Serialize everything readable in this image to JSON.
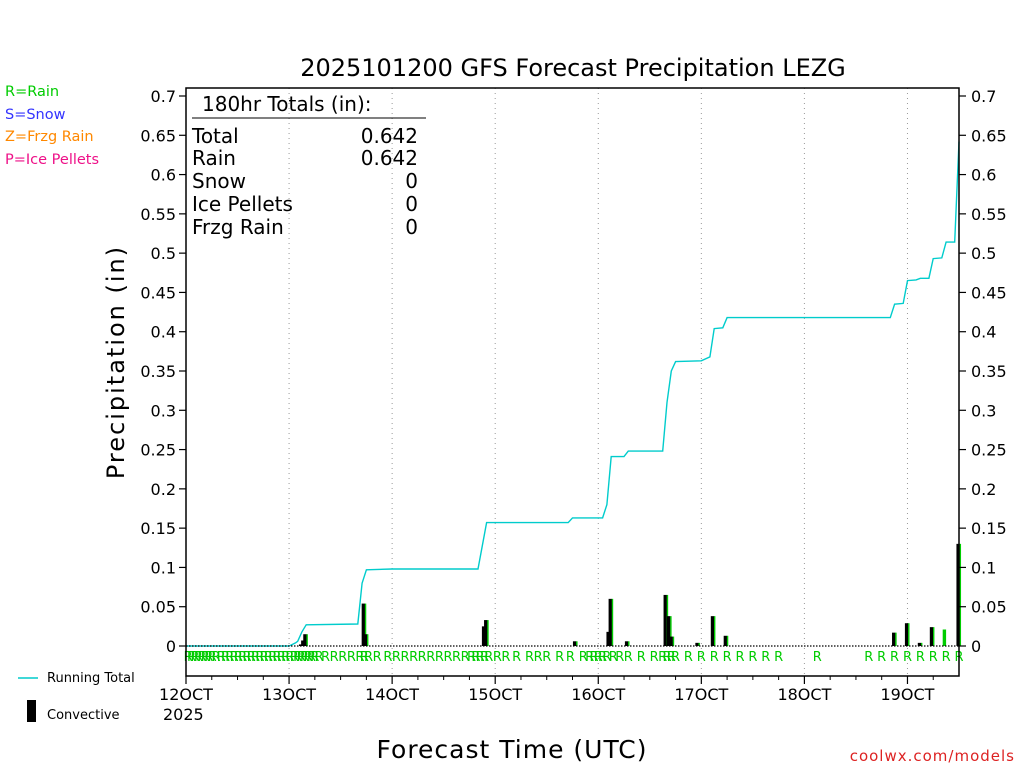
{
  "chart_data": {
    "type": "bar",
    "title": "2025101200 GFS Forecast Precipitation LEZG",
    "xlabel": "Forecast Time (UTC)",
    "ylabel": "Precipitation (in)",
    "xlim": [
      0,
      180
    ],
    "ylim": [
      0,
      0.7
    ],
    "y_ticks": [
      "0",
      "0.05",
      "0.1",
      "0.15",
      "0.2",
      "0.25",
      "0.3",
      "0.35",
      "0.4",
      "0.45",
      "0.5",
      "0.55",
      "0.6",
      "0.65",
      "0.7"
    ],
    "x_ticks": [
      {
        "hour": 0,
        "label": "12OCT"
      },
      {
        "hour": 24,
        "label": "13OCT"
      },
      {
        "hour": 48,
        "label": "14OCT"
      },
      {
        "hour": 72,
        "label": "15OCT"
      },
      {
        "hour": 96,
        "label": "16OCT"
      },
      {
        "hour": 120,
        "label": "17OCT"
      },
      {
        "hour": 144,
        "label": "18OCT"
      },
      {
        "hour": 168,
        "label": "19OCT"
      }
    ],
    "year_label": "2025",
    "gridlines": "vertical dotted at day boundaries",
    "legend_left": [
      {
        "text": "R=Rain",
        "color": "#00cc00"
      },
      {
        "text": "S=Snow",
        "color": "#3333ff"
      },
      {
        "text": "Z=Frzg Rain",
        "color": "#ff8800"
      },
      {
        "text": "P=Ice Pellets",
        "color": "#ee1188"
      }
    ],
    "legend_bottom": [
      {
        "text": "Running Total",
        "color": "#00cccc"
      },
      {
        "text": "Convective",
        "color": "#000000"
      }
    ],
    "totals": {
      "header": "180hr Totals (in):",
      "rows": [
        {
          "label": "Total",
          "value": "0.642"
        },
        {
          "label": "Rain",
          "value": "0.642"
        },
        {
          "label": "Snow",
          "value": "0"
        },
        {
          "label": "Ice Pellets",
          "value": "0"
        },
        {
          "label": "Frzg Rain",
          "value": "0"
        }
      ]
    },
    "series": [
      {
        "name": "Running Total",
        "color": "#00cccc",
        "points": [
          [
            0,
            0
          ],
          [
            24,
            0
          ],
          [
            25.5,
            0.004
          ],
          [
            26,
            0.006
          ],
          [
            27,
            0.018
          ],
          [
            28,
            0.027
          ],
          [
            40,
            0.028
          ],
          [
            41,
            0.08
          ],
          [
            42,
            0.097
          ],
          [
            48,
            0.098
          ],
          [
            68,
            0.098
          ],
          [
            70,
            0.157
          ],
          [
            89,
            0.157
          ],
          [
            90,
            0.163
          ],
          [
            97,
            0.163
          ],
          [
            98,
            0.18
          ],
          [
            99,
            0.241
          ],
          [
            102,
            0.241
          ],
          [
            103,
            0.248
          ],
          [
            111,
            0.248
          ],
          [
            112,
            0.31
          ],
          [
            113,
            0.35
          ],
          [
            114,
            0.362
          ],
          [
            120,
            0.363
          ],
          [
            122,
            0.368
          ],
          [
            123,
            0.404
          ],
          [
            125,
            0.405
          ],
          [
            126,
            0.418
          ],
          [
            164,
            0.418
          ],
          [
            165,
            0.435
          ],
          [
            167,
            0.436
          ],
          [
            168,
            0.465
          ],
          [
            170,
            0.466
          ],
          [
            171,
            0.468
          ],
          [
            173,
            0.468
          ],
          [
            174,
            0.493
          ],
          [
            176,
            0.494
          ],
          [
            177,
            0.514
          ],
          [
            179,
            0.514
          ],
          [
            180,
            0.642
          ]
        ]
      },
      {
        "name": "Precipitation",
        "color": "#00cc00",
        "bars": [
          {
            "hour": 26.7,
            "value": 0.002,
            "convective": true
          },
          {
            "hour": 27.2,
            "value": 0.007,
            "convective": true
          },
          {
            "hour": 27.7,
            "value": 0.015,
            "convective": true
          },
          {
            "hour": 41.3,
            "value": 0.054,
            "convective": true
          },
          {
            "hour": 41.8,
            "value": 0.015,
            "convective": true
          },
          {
            "hour": 69.3,
            "value": 0.025,
            "convective": true
          },
          {
            "hour": 69.8,
            "value": 0.033,
            "convective": true
          },
          {
            "hour": 90.5,
            "value": 0.006,
            "convective": true
          },
          {
            "hour": 98.3,
            "value": 0.018,
            "convective": true
          },
          {
            "hour": 98.8,
            "value": 0.06,
            "convective": true
          },
          {
            "hour": 102.6,
            "value": 0.006,
            "convective": true
          },
          {
            "hour": 111.6,
            "value": 0.065,
            "convective": true
          },
          {
            "hour": 112.4,
            "value": 0.038,
            "convective": true
          },
          {
            "hour": 113,
            "value": 0.012,
            "convective": true
          },
          {
            "hour": 119,
            "value": 0.004,
            "convective": true
          },
          {
            "hour": 122.6,
            "value": 0.038,
            "convective": true
          },
          {
            "hour": 125.6,
            "value": 0.013,
            "convective": true
          },
          {
            "hour": 164.8,
            "value": 0.017,
            "convective": true
          },
          {
            "hour": 167.8,
            "value": 0.029,
            "convective": true
          },
          {
            "hour": 170.8,
            "value": 0.004,
            "convective": true
          },
          {
            "hour": 173.6,
            "value": 0.024,
            "convective": true
          },
          {
            "hour": 176.6,
            "value": 0.021,
            "convective": false
          },
          {
            "hour": 179.8,
            "value": 0.13,
            "convective": true
          }
        ]
      }
    ],
    "ptype_markers": {
      "letter": "R",
      "hours": [
        0.5,
        1.3,
        2.1,
        2.9,
        3.7,
        4.5,
        5.3,
        6.1,
        7,
        8.2,
        9.2,
        10.2,
        11.2,
        12.2,
        13.2,
        14.2,
        15.2,
        16.2,
        17.2,
        18.2,
        19.2,
        20.2,
        21.2,
        22.2,
        23.2,
        24.2,
        25.2,
        26,
        26.8,
        27.6,
        28.4,
        29.2,
        30,
        31,
        32.5,
        34.5,
        36.5,
        38.5,
        40.5,
        41.5,
        42.5,
        44.5,
        47,
        49,
        51,
        53,
        55,
        57,
        59,
        61,
        63,
        65,
        66.5,
        67.5,
        68.5,
        69.5,
        70.5,
        72.5,
        74.5,
        77,
        80,
        82,
        84,
        87,
        89.5,
        92.5,
        94,
        95,
        96,
        97,
        98,
        99.5,
        101,
        103,
        106,
        109,
        111,
        112,
        113,
        114,
        117,
        120,
        123,
        126,
        129,
        132,
        135,
        138,
        147,
        159,
        162,
        165,
        168,
        171,
        174,
        177,
        180
      ]
    }
  },
  "watermark": "coolwx.com/models"
}
